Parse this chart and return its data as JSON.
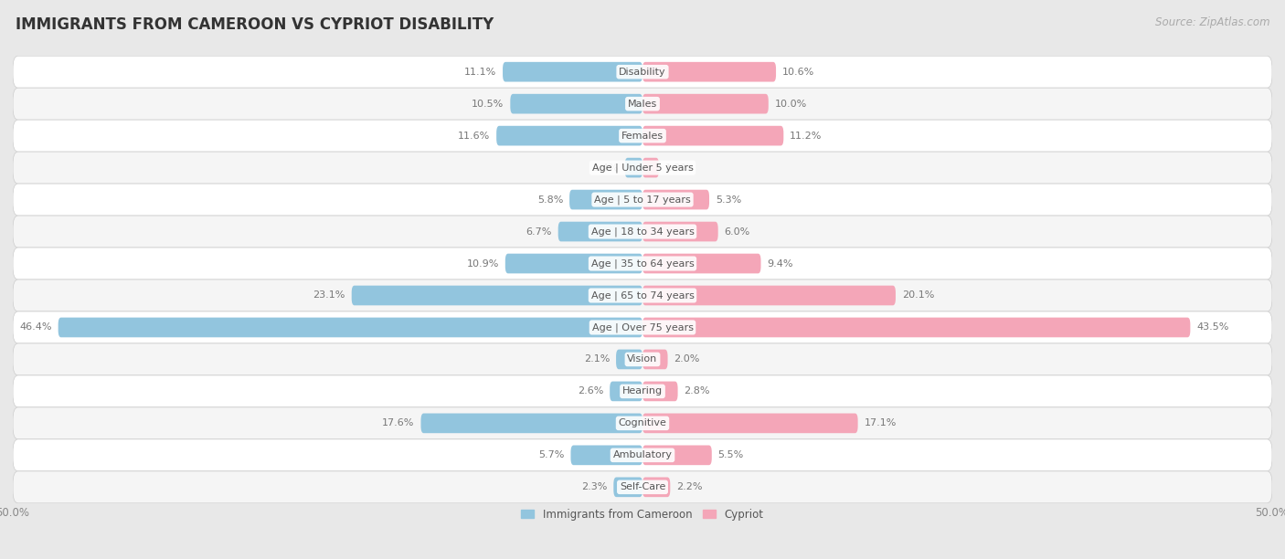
{
  "title": "IMMIGRANTS FROM CAMEROON VS CYPRIOT DISABILITY",
  "source": "Source: ZipAtlas.com",
  "categories": [
    "Disability",
    "Males",
    "Females",
    "Age | Under 5 years",
    "Age | 5 to 17 years",
    "Age | 18 to 34 years",
    "Age | 35 to 64 years",
    "Age | 65 to 74 years",
    "Age | Over 75 years",
    "Vision",
    "Hearing",
    "Cognitive",
    "Ambulatory",
    "Self-Care"
  ],
  "left_values": [
    11.1,
    10.5,
    11.6,
    1.4,
    5.8,
    6.7,
    10.9,
    23.1,
    46.4,
    2.1,
    2.6,
    17.6,
    5.7,
    2.3
  ],
  "right_values": [
    10.6,
    10.0,
    11.2,
    1.3,
    5.3,
    6.0,
    9.4,
    20.1,
    43.5,
    2.0,
    2.8,
    17.1,
    5.5,
    2.2
  ],
  "left_color": "#92C5DE",
  "right_color": "#F4A6B8",
  "axis_max": 50.0,
  "legend_left": "Immigrants from Cameroon",
  "legend_right": "Cypriot",
  "outer_bg_color": "#e8e8e8",
  "row_bg_color": "#f5f5f5",
  "row_alt_bg_color": "#ffffff",
  "title_fontsize": 12,
  "source_fontsize": 8.5,
  "label_fontsize": 8.5,
  "value_fontsize": 8,
  "category_fontsize": 8
}
